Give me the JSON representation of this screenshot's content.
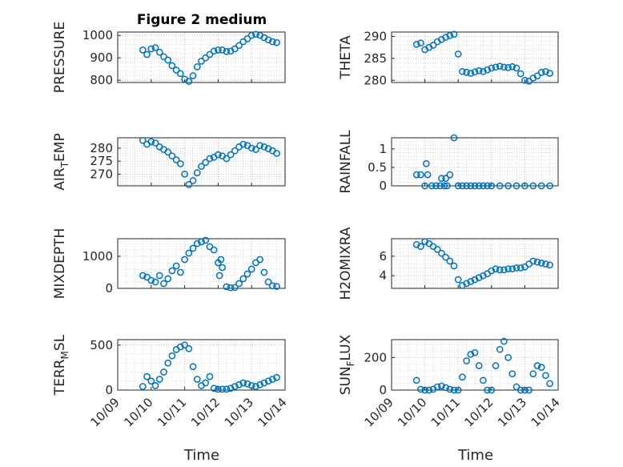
{
  "figure": {
    "title": "Figure 2 medium",
    "xlabel": "Time",
    "x_tick_labels": [
      "10/09",
      "10/10",
      "10/11",
      "10/12",
      "10/13",
      "10/14"
    ],
    "marker_color": "#0072BD",
    "grid": "major and minor dotted"
  },
  "chart_data": [
    {
      "type": "scatter",
      "ylabel": "PRESSURE",
      "ytick_labels": [
        "800",
        "900",
        "1000"
      ],
      "ylim": [
        790,
        1015
      ],
      "x": [
        "10/09 18:00",
        "10/09 21:00",
        "10/10 00:00",
        "10/10 03:00",
        "10/10 06:00",
        "10/10 09:00",
        "10/10 12:00",
        "10/10 15:00",
        "10/10 18:00",
        "10/10 21:00",
        "10/11 00:00",
        "10/11 03:00",
        "10/11 06:00",
        "10/11 09:00",
        "10/11 12:00",
        "10/11 15:00",
        "10/11 18:00",
        "10/11 21:00",
        "10/12 00:00",
        "10/12 03:00",
        "10/12 06:00",
        "10/12 09:00",
        "10/12 12:00",
        "10/12 15:00",
        "10/12 18:00",
        "10/12 21:00",
        "10/13 00:00",
        "10/13 03:00",
        "10/13 06:00",
        "10/13 09:00",
        "10/13 12:00",
        "10/13 15:00",
        "10/13 18:00"
      ],
      "y": [
        935,
        915,
        940,
        945,
        925,
        905,
        890,
        865,
        845,
        830,
        805,
        795,
        820,
        860,
        885,
        900,
        915,
        930,
        935,
        935,
        928,
        930,
        940,
        955,
        972,
        985,
        1000,
        1005,
        1000,
        990,
        980,
        972,
        968
      ]
    },
    {
      "type": "scatter",
      "ylabel": "THETA",
      "ytick_labels": [
        "280",
        "285",
        "290"
      ],
      "ylim": [
        279.5,
        291
      ],
      "x": [
        "10/09 18:00",
        "10/09 21:00",
        "10/10 00:00",
        "10/10 03:00",
        "10/10 06:00",
        "10/10 09:00",
        "10/10 12:00",
        "10/10 15:00",
        "10/10 18:00",
        "10/10 21:00",
        "10/11 00:00",
        "10/11 03:00",
        "10/11 06:00",
        "10/11 09:00",
        "10/11 12:00",
        "10/11 15:00",
        "10/11 18:00",
        "10/11 21:00",
        "10/12 00:00",
        "10/12 03:00",
        "10/12 06:00",
        "10/12 09:00",
        "10/12 12:00",
        "10/12 15:00",
        "10/12 18:00",
        "10/12 21:00",
        "10/13 00:00",
        "10/13 03:00",
        "10/13 06:00",
        "10/13 09:00",
        "10/13 12:00",
        "10/13 15:00",
        "10/13 18:00"
      ],
      "y": [
        288.2,
        288.5,
        287.0,
        287.5,
        288.0,
        288.8,
        289.3,
        289.8,
        290.2,
        290.5,
        286.0,
        282.0,
        281.8,
        281.6,
        281.9,
        282.2,
        282.0,
        282.4,
        282.8,
        283.0,
        283.2,
        283.0,
        282.9,
        283.1,
        282.8,
        281.5,
        280.0,
        279.8,
        280.5,
        281.0,
        281.8,
        282.0,
        281.6
      ]
    },
    {
      "type": "scatter",
      "ylabel": "AIR_T_EMP",
      "ytick_labels": [
        "270",
        "275",
        "280"
      ],
      "ylim": [
        265.5,
        284
      ],
      "x": [
        "10/09 18:00",
        "10/09 21:00",
        "10/10 00:00",
        "10/10 03:00",
        "10/10 06:00",
        "10/10 09:00",
        "10/10 12:00",
        "10/10 15:00",
        "10/10 18:00",
        "10/10 21:00",
        "10/11 00:00",
        "10/11 03:00",
        "10/11 06:00",
        "10/11 09:00",
        "10/11 12:00",
        "10/11 15:00",
        "10/11 18:00",
        "10/11 21:00",
        "10/12 00:00",
        "10/12 03:00",
        "10/12 06:00",
        "10/12 09:00",
        "10/12 12:00",
        "10/12 15:00",
        "10/12 18:00",
        "10/12 21:00",
        "10/13 00:00",
        "10/13 03:00",
        "10/13 06:00",
        "10/13 09:00",
        "10/13 12:00",
        "10/13 15:00",
        "10/13 18:00"
      ],
      "y": [
        283.0,
        281.5,
        282.5,
        282.0,
        280.5,
        279.5,
        278.5,
        277.0,
        275.5,
        274.0,
        270.0,
        266.0,
        267.5,
        270.5,
        273.0,
        274.5,
        276.0,
        276.5,
        277.5,
        277.0,
        276.0,
        277.5,
        279.0,
        280.5,
        281.5,
        281.0,
        280.0,
        279.5,
        281.0,
        280.5,
        279.8,
        279.0,
        278.0
      ]
    },
    {
      "type": "scatter",
      "ylabel": "RAINFALL",
      "ytick_labels": [
        "0",
        "0.5",
        "1"
      ],
      "ylim": [
        0,
        1.3
      ],
      "x": [
        "10/09 18:00",
        "10/09 21:00",
        "10/10 00:00",
        "10/10 01:00",
        "10/10 02:00",
        "10/10 05:00",
        "10/10 08:00",
        "10/10 11:00",
        "10/10 12:00",
        "10/10 14:00",
        "10/10 15:00",
        "10/10 16:00",
        "10/10 18:00",
        "10/10 21:00",
        "10/11 00:00",
        "10/11 03:00",
        "10/11 06:00",
        "10/11 09:00",
        "10/11 12:00",
        "10/11 15:00",
        "10/11 18:00",
        "10/11 21:00",
        "10/12 00:00",
        "10/12 06:00",
        "10/12 12:00",
        "10/12 18:00",
        "10/13 00:00",
        "10/13 06:00",
        "10/13 12:00",
        "10/13 18:00"
      ],
      "y": [
        0.3,
        0.3,
        0.0,
        0.6,
        0.3,
        0.0,
        0.0,
        0.0,
        0.2,
        0.0,
        0.2,
        0.0,
        0.3,
        1.3,
        0.0,
        0.0,
        0.0,
        0.0,
        0.0,
        0.0,
        0.0,
        0.0,
        0.0,
        0.0,
        0.0,
        0.0,
        0.0,
        0.0,
        0.0,
        0.0
      ]
    },
    {
      "type": "scatter",
      "ylabel": "MIXDEPTH",
      "ytick_labels": [
        "0",
        "1000"
      ],
      "ylim": [
        0,
        1550
      ],
      "x": [
        "10/09 18:00",
        "10/09 21:00",
        "10/10 00:00",
        "10/10 03:00",
        "10/10 06:00",
        "10/10 09:00",
        "10/10 12:00",
        "10/10 15:00",
        "10/10 18:00",
        "10/10 21:00",
        "10/11 00:00",
        "10/11 03:00",
        "10/11 06:00",
        "10/11 09:00",
        "10/11 12:00",
        "10/11 15:00",
        "10/11 18:00",
        "10/11 21:00",
        "10/12 00:00",
        "10/12 01:00",
        "10/12 02:00",
        "10/12 03:00",
        "10/12 06:00",
        "10/12 09:00",
        "10/12 12:00",
        "10/12 15:00",
        "10/12 18:00",
        "10/12 21:00",
        "10/13 00:00",
        "10/13 03:00",
        "10/13 06:00",
        "10/13 09:00",
        "10/13 12:00",
        "10/13 15:00",
        "10/13 18:00"
      ],
      "y": [
        400,
        350,
        250,
        200,
        400,
        150,
        300,
        550,
        700,
        500,
        900,
        1100,
        1250,
        1400,
        1450,
        1500,
        1300,
        1200,
        800,
        400,
        900,
        650,
        50,
        20,
        30,
        150,
        300,
        450,
        600,
        800,
        900,
        500,
        200,
        80,
        60
      ]
    },
    {
      "type": "scatter",
      "ylabel": "H2OMIXRA",
      "ytick_labels": [
        "4",
        "6"
      ],
      "ylim": [
        2.7,
        7.8
      ],
      "x": [
        "10/09 18:00",
        "10/09 21:00",
        "10/10 00:00",
        "10/10 03:00",
        "10/10 06:00",
        "10/10 09:00",
        "10/10 12:00",
        "10/10 15:00",
        "10/10 18:00",
        "10/10 21:00",
        "10/11 00:00",
        "10/11 03:00",
        "10/11 06:00",
        "10/11 09:00",
        "10/11 12:00",
        "10/11 15:00",
        "10/11 18:00",
        "10/11 21:00",
        "10/12 00:00",
        "10/12 03:00",
        "10/12 06:00",
        "10/12 09:00",
        "10/12 12:00",
        "10/12 15:00",
        "10/12 18:00",
        "10/12 21:00",
        "10/13 00:00",
        "10/13 03:00",
        "10/13 06:00",
        "10/13 09:00",
        "10/13 12:00",
        "10/13 15:00",
        "10/13 18:00"
      ],
      "y": [
        7.2,
        7.0,
        7.5,
        7.3,
        7.0,
        6.7,
        6.3,
        5.9,
        5.5,
        5.0,
        3.6,
        3.0,
        3.2,
        3.4,
        3.6,
        3.8,
        4.0,
        4.2,
        4.5,
        4.7,
        4.6,
        4.6,
        4.7,
        4.7,
        4.8,
        4.8,
        4.9,
        5.2,
        5.5,
        5.4,
        5.3,
        5.2,
        5.1
      ]
    },
    {
      "type": "scatter",
      "ylabel": "TERR_M_SL",
      "ytick_labels": [
        "0",
        "500"
      ],
      "ylim": [
        0,
        560
      ],
      "x": [
        "10/09 18:00",
        "10/09 21:00",
        "10/10 00:00",
        "10/10 03:00",
        "10/10 06:00",
        "10/10 09:00",
        "10/10 12:00",
        "10/10 15:00",
        "10/10 18:00",
        "10/10 21:00",
        "10/11 00:00",
        "10/11 03:00",
        "10/11 06:00",
        "10/11 09:00",
        "10/11 12:00",
        "10/11 15:00",
        "10/11 18:00",
        "10/11 21:00",
        "10/12 00:00",
        "10/12 03:00",
        "10/12 06:00",
        "10/12 09:00",
        "10/12 12:00",
        "10/12 15:00",
        "10/12 18:00",
        "10/12 21:00",
        "10/13 00:00",
        "10/13 03:00",
        "10/13 06:00",
        "10/13 09:00",
        "10/13 12:00",
        "10/13 15:00",
        "10/13 18:00"
      ],
      "y": [
        40,
        150,
        100,
        50,
        120,
        200,
        300,
        380,
        450,
        480,
        500,
        460,
        260,
        120,
        50,
        80,
        150,
        20,
        10,
        10,
        10,
        20,
        40,
        60,
        80,
        70,
        50,
        40,
        60,
        80,
        100,
        120,
        140
      ]
    },
    {
      "type": "scatter",
      "ylabel": "SUN_F_LUX",
      "ytick_labels": [
        "0",
        "200"
      ],
      "ylim": [
        0,
        310
      ],
      "x": [
        "10/09 18:00",
        "10/09 21:00",
        "10/10 00:00",
        "10/10 03:00",
        "10/10 06:00",
        "10/10 09:00",
        "10/10 12:00",
        "10/10 15:00",
        "10/10 18:00",
        "10/10 21:00",
        "10/11 00:00",
        "10/11 03:00",
        "10/11 06:00",
        "10/11 09:00",
        "10/11 12:00",
        "10/11 15:00",
        "10/11 18:00",
        "10/11 21:00",
        "10/12 00:00",
        "10/12 03:00",
        "10/12 06:00",
        "10/12 09:00",
        "10/12 12:00",
        "10/12 15:00",
        "10/12 18:00",
        "10/12 21:00",
        "10/13 00:00",
        "10/13 03:00",
        "10/13 06:00",
        "10/13 09:00",
        "10/13 12:00",
        "10/13 15:00",
        "10/13 18:00"
      ],
      "y": [
        60,
        5,
        0,
        0,
        5,
        20,
        25,
        15,
        5,
        0,
        0,
        80,
        180,
        220,
        230,
        150,
        60,
        0,
        0,
        150,
        250,
        300,
        200,
        100,
        20,
        0,
        0,
        0,
        100,
        150,
        140,
        90,
        40
      ]
    }
  ]
}
